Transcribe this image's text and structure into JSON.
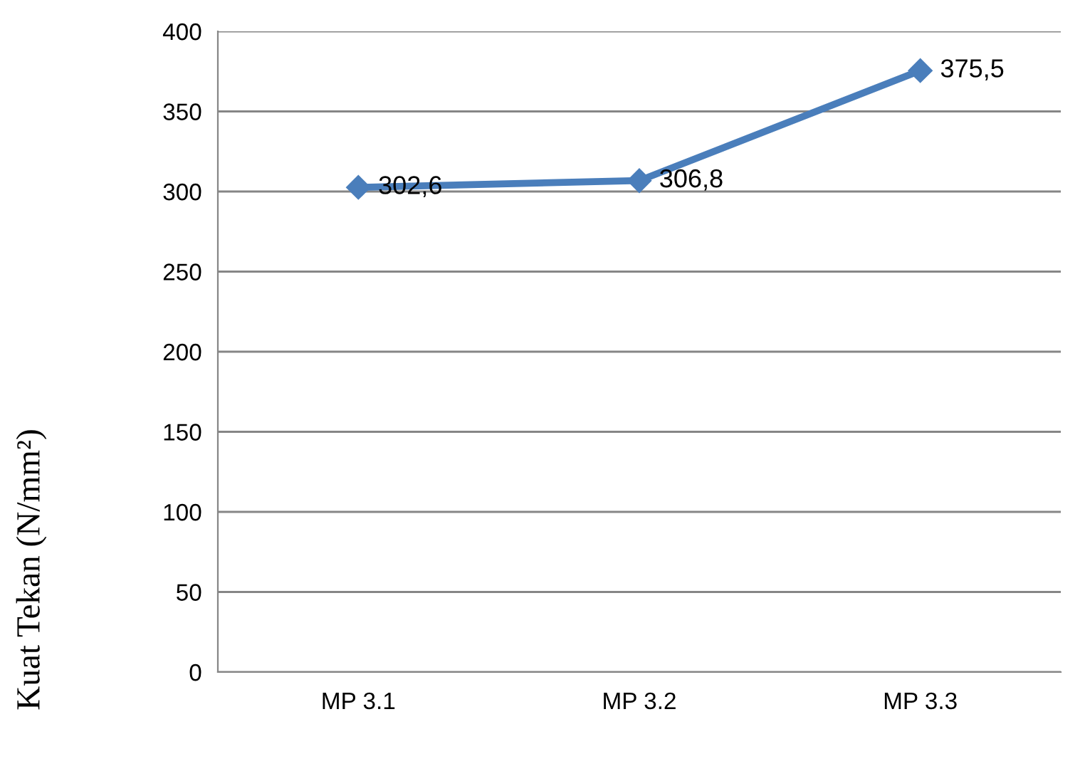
{
  "chart_data": {
    "type": "line",
    "ylabel": "Kuat Tekan (N/mm²)",
    "categories": [
      "MP 3.1",
      "MP 3.2",
      "MP 3.3"
    ],
    "series": [
      {
        "color": "#4a7ebb",
        "values": [
          302.6,
          306.8,
          375.5
        ],
        "value_labels": [
          "302,6",
          "306,8",
          "375,5"
        ]
      }
    ],
    "ylim": [
      0,
      400
    ],
    "yticks": [
      0,
      50,
      100,
      150,
      200,
      250,
      300,
      350,
      400
    ],
    "grid": "y",
    "marker": "diamond",
    "line_style": "solid"
  }
}
